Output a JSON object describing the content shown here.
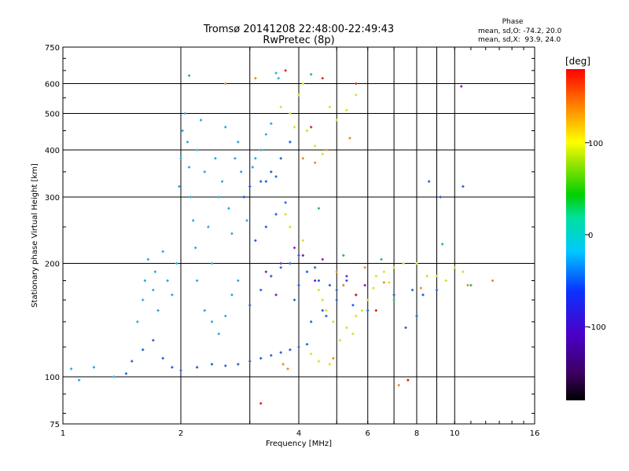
{
  "chart_data": {
    "type": "scatter",
    "title": "Tromsø 20141208 22:48:00-22:49:43",
    "subtitle": "RwPretec (8p)",
    "xlabel": "Frequency [MHz]",
    "ylabel": "Stationary phase Virtual Height [km]",
    "x_scale": "log",
    "y_scale": "log",
    "xlim": [
      1,
      16
    ],
    "ylim": [
      75,
      750
    ],
    "x_ticks": [
      1,
      2,
      4,
      6,
      8,
      10,
      16
    ],
    "x_gridlines": [
      2,
      3,
      4,
      5,
      6,
      7,
      8,
      9,
      10
    ],
    "y_ticks": [
      75,
      100,
      200,
      300,
      400,
      500,
      600,
      750
    ],
    "grid": true,
    "annotation": {
      "heading": "Phase",
      "line_o": "mean, sd,O: -74.2, 20.0",
      "line_x": "mean, sd,X:  93.9, 24.0"
    },
    "colorbar": {
      "label": "[deg]",
      "ticks": [
        100,
        0,
        -100
      ],
      "range": [
        -180,
        180
      ],
      "colormap": "rainbow: black(-180) to purple, blue, cyan, green, yellow, orange, red(180)"
    },
    "series": [
      {
        "color": "#22a8e0",
        "points": [
          [
            1.05,
            105
          ],
          [
            1.1,
            98
          ],
          [
            1.2,
            106
          ],
          [
            1.35,
            100
          ],
          [
            1.55,
            140
          ],
          [
            1.6,
            160
          ],
          [
            1.62,
            180
          ],
          [
            1.65,
            205
          ],
          [
            1.7,
            170
          ],
          [
            1.72,
            190
          ],
          [
            1.75,
            150
          ],
          [
            1.8,
            215
          ],
          [
            1.85,
            180
          ],
          [
            1.9,
            165
          ],
          [
            1.95,
            200
          ],
          [
            1.98,
            320
          ],
          [
            2.0,
            380
          ],
          [
            2.02,
            450
          ],
          [
            2.05,
            500
          ],
          [
            2.08,
            420
          ],
          [
            2.1,
            360
          ],
          [
            2.12,
            300
          ],
          [
            2.15,
            260
          ],
          [
            2.18,
            220
          ],
          [
            2.2,
            400
          ],
          [
            2.25,
            480
          ],
          [
            2.3,
            350
          ],
          [
            2.35,
            250
          ],
          [
            2.4,
            200
          ],
          [
            2.45,
            380
          ],
          [
            2.5,
            300
          ],
          [
            2.55,
            330
          ],
          [
            2.6,
            460
          ],
          [
            2.65,
            280
          ],
          [
            2.7,
            240
          ],
          [
            2.75,
            380
          ],
          [
            2.8,
            420
          ],
          [
            2.85,
            350
          ],
          [
            2.9,
            300
          ],
          [
            2.95,
            260
          ],
          [
            3.0,
            320
          ],
          [
            3.05,
            360
          ],
          [
            2.2,
            180
          ],
          [
            2.3,
            150
          ],
          [
            2.4,
            140
          ],
          [
            2.5,
            130
          ],
          [
            2.6,
            145
          ],
          [
            2.7,
            165
          ],
          [
            2.8,
            180
          ],
          [
            3.1,
            380
          ],
          [
            3.2,
            400
          ],
          [
            3.3,
            440
          ],
          [
            3.4,
            470
          ],
          [
            3.5,
            640
          ],
          [
            3.55,
            620
          ]
        ]
      },
      {
        "color": "#1e5adc",
        "points": [
          [
            1.45,
            102
          ],
          [
            1.5,
            110
          ],
          [
            1.6,
            118
          ],
          [
            1.7,
            125
          ],
          [
            1.8,
            112
          ],
          [
            1.9,
            106
          ],
          [
            2.0,
            104
          ],
          [
            2.2,
            106
          ],
          [
            2.4,
            108
          ],
          [
            2.6,
            107
          ],
          [
            2.8,
            108
          ],
          [
            3.0,
            110
          ],
          [
            3.2,
            112
          ],
          [
            3.4,
            114
          ],
          [
            3.6,
            116
          ],
          [
            3.8,
            118
          ],
          [
            4.0,
            120
          ],
          [
            4.2,
            122
          ],
          [
            3.0,
            155
          ],
          [
            3.2,
            170
          ],
          [
            3.4,
            185
          ],
          [
            3.6,
            195
          ],
          [
            3.8,
            200
          ],
          [
            4.0,
            210
          ],
          [
            4.2,
            190
          ],
          [
            4.5,
            180
          ],
          [
            4.8,
            175
          ],
          [
            5.0,
            170
          ],
          [
            5.3,
            180
          ],
          [
            5.6,
            165
          ],
          [
            3.1,
            230
          ],
          [
            3.3,
            250
          ],
          [
            3.5,
            270
          ],
          [
            3.7,
            290
          ],
          [
            3.2,
            330
          ],
          [
            3.4,
            350
          ],
          [
            3.6,
            380
          ],
          [
            3.8,
            420
          ],
          [
            2.9,
            300
          ],
          [
            3.0,
            320
          ],
          [
            3.3,
            330
          ],
          [
            3.5,
            340
          ],
          [
            4.3,
            140
          ],
          [
            4.6,
            150
          ],
          [
            5.0,
            160
          ],
          [
            5.5,
            155
          ],
          [
            6.0,
            150
          ],
          [
            7.0,
            165
          ],
          [
            7.8,
            170
          ],
          [
            8.3,
            165
          ],
          [
            9.0,
            170
          ],
          [
            7.5,
            135
          ],
          [
            8.0,
            145
          ],
          [
            8.6,
            330
          ],
          [
            9.2,
            300
          ],
          [
            10.5,
            320
          ],
          [
            4.0,
            175
          ],
          [
            4.4,
            195
          ],
          [
            3.9,
            160
          ],
          [
            4.7,
            145
          ]
        ]
      },
      {
        "color": "#d4e021",
        "points": [
          [
            3.6,
            520
          ],
          [
            3.8,
            500
          ],
          [
            3.9,
            460
          ],
          [
            4.0,
            560
          ],
          [
            4.1,
            600
          ],
          [
            4.2,
            450
          ],
          [
            4.4,
            410
          ],
          [
            4.6,
            390
          ],
          [
            4.8,
            520
          ],
          [
            5.0,
            480
          ],
          [
            5.3,
            510
          ],
          [
            5.6,
            560
          ],
          [
            3.7,
            270
          ],
          [
            3.8,
            250
          ],
          [
            4.1,
            230
          ],
          [
            4.5,
            170
          ],
          [
            4.6,
            160
          ],
          [
            4.7,
            150
          ],
          [
            4.9,
            140
          ],
          [
            5.1,
            125
          ],
          [
            5.3,
            135
          ],
          [
            5.6,
            145
          ],
          [
            5.8,
            150
          ],
          [
            6.0,
            160
          ],
          [
            6.3,
            185
          ],
          [
            6.6,
            190
          ],
          [
            7.0,
            195
          ],
          [
            7.4,
            200
          ],
          [
            8.0,
            200
          ],
          [
            8.5,
            185
          ],
          [
            9.0,
            185
          ],
          [
            9.5,
            180
          ],
          [
            10.0,
            195
          ],
          [
            10.5,
            190
          ],
          [
            6.2,
            172
          ],
          [
            6.8,
            178
          ],
          [
            4.3,
            115
          ],
          [
            4.5,
            110
          ],
          [
            4.8,
            108
          ],
          [
            5.5,
            130
          ]
        ]
      },
      {
        "color": "#e68a1f",
        "points": [
          [
            4.1,
            380
          ],
          [
            4.4,
            370
          ],
          [
            4.7,
            400
          ],
          [
            3.75,
            105
          ],
          [
            3.65,
            108
          ],
          [
            4.9,
            112
          ],
          [
            5.2,
            175
          ],
          [
            5.9,
            195
          ],
          [
            6.6,
            178
          ],
          [
            8.2,
            172
          ],
          [
            7.2,
            95
          ],
          [
            5.0,
            190
          ],
          [
            10.8,
            175
          ],
          [
            12.5,
            180
          ],
          [
            3.1,
            620
          ],
          [
            2.6,
            600
          ],
          [
            5.4,
            430
          ]
        ]
      },
      {
        "color": "#dc1e1e",
        "points": [
          [
            3.7,
            650
          ],
          [
            4.6,
            620
          ],
          [
            5.6,
            600
          ],
          [
            3.2,
            85
          ],
          [
            5.6,
            165
          ],
          [
            6.3,
            150
          ],
          [
            4.3,
            460
          ],
          [
            7.6,
            98
          ]
        ]
      },
      {
        "color": "#7a1fbf",
        "points": [
          [
            3.3,
            190
          ],
          [
            3.6,
            200
          ],
          [
            4.1,
            210
          ],
          [
            3.9,
            220
          ],
          [
            4.6,
            205
          ],
          [
            5.3,
            185
          ],
          [
            5.9,
            175
          ],
          [
            3.5,
            165
          ],
          [
            4.4,
            180
          ],
          [
            10.4,
            590
          ]
        ]
      },
      {
        "color": "#1fbf5a",
        "points": [
          [
            2.1,
            630
          ],
          [
            4.3,
            635
          ],
          [
            4.5,
            280
          ],
          [
            5.2,
            210
          ],
          [
            6.5,
            205
          ],
          [
            9.3,
            225
          ],
          [
            7.0,
            160
          ],
          [
            11.0,
            175
          ]
        ]
      }
    ]
  }
}
